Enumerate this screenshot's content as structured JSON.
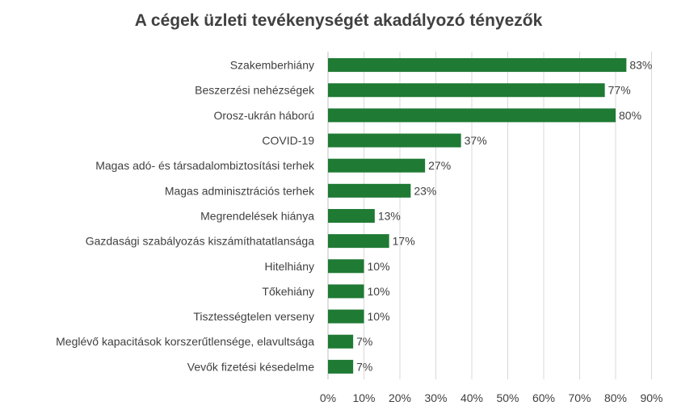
{
  "chart_data": {
    "type": "bar",
    "orientation": "horizontal",
    "title": "A cégek üzleti tevékenységét akadályozó tényezők",
    "categories": [
      "Szakemberhiány",
      "Beszerzési nehézségek",
      "Orosz-ukrán háború",
      "COVID-19",
      "Magas adó- és társadalombiztosítási terhek",
      "Magas adminisztrációs terhek",
      "Megrendelések hiánya",
      "Gazdasági szabályozás kiszámíthatatlansága",
      "Hitelhiány",
      "Tőkehiány",
      "Tisztességtelen verseny",
      "Meglévő kapacitások korszerűtlensége, elavultsága",
      "Vevők fizetési késedelme"
    ],
    "values": [
      83,
      77,
      80,
      37,
      27,
      23,
      13,
      17,
      10,
      10,
      10,
      7,
      7
    ],
    "data_labels": [
      "83%",
      "77%",
      "80%",
      "37%",
      "27%",
      "23%",
      "13%",
      "17%",
      "10%",
      "10%",
      "10%",
      "7%",
      "7%"
    ],
    "xlim": [
      0,
      90
    ],
    "x_ticks": [
      "0%",
      "10%",
      "20%",
      "30%",
      "40%",
      "50%",
      "60%",
      "70%",
      "80%",
      "90%"
    ],
    "grid": true,
    "legend": "none",
    "bar_color": "#1f7a34"
  }
}
